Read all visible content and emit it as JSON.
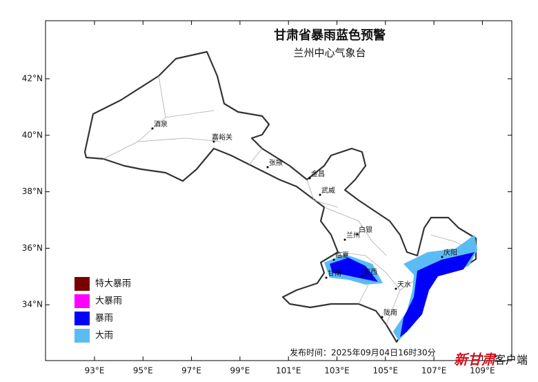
{
  "header": {
    "title": "甘肃省暴雨蓝色预警",
    "subtitle": "兰州中心气象台"
  },
  "axes": {
    "lat_labels": [
      "42°N",
      "40°N",
      "38°N",
      "36°N",
      "34°N"
    ],
    "lon_labels": [
      "93°E",
      "95°E",
      "97°E",
      "99°E",
      "101°E",
      "103°E",
      "105°E",
      "107°E",
      "109°E"
    ]
  },
  "cities": [
    "酒泉",
    "嘉峪关",
    "张掖",
    "金昌",
    "武威",
    "白银",
    "兰州",
    "临夏",
    "甘南",
    "定西",
    "天水",
    "陇南",
    "庆阳"
  ],
  "legend": [
    {
      "label": "特大暴雨",
      "color": "#7a0000"
    },
    {
      "label": "大暴雨",
      "color": "#ff00ff"
    },
    {
      "label": "暴雨",
      "color": "#0000ff"
    },
    {
      "label": "大雨",
      "color": "#5bbcf5"
    }
  ],
  "footer": {
    "publish_time": "发布时间：2025年09月04日16时30分",
    "brand": "新甘肃",
    "suffix": "客户端"
  }
}
